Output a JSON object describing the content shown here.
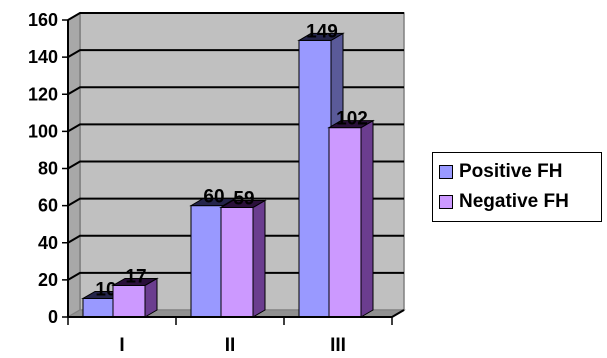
{
  "chart_data": {
    "type": "bar",
    "categories": [
      "I",
      "II",
      "III"
    ],
    "series": [
      {
        "name": "Positive FH",
        "values": [
          10,
          60,
          149
        ],
        "color": "#9999ff",
        "side_color": "#5a5a99",
        "top_color": "#24244a",
        "labels": [
          "10",
          "60",
          "149"
        ]
      },
      {
        "name": "Negative FH",
        "values": [
          17,
          59,
          102
        ],
        "color": "#cc99ff",
        "side_color": "#6b3d8f",
        "top_color": "#2a0f3a",
        "labels": [
          "17",
          "59",
          "102"
        ]
      }
    ],
    "yticks": [
      0,
      20,
      40,
      60,
      80,
      100,
      120,
      140,
      160
    ],
    "ylim": [
      0,
      160
    ],
    "grid": true,
    "legend_position": "right",
    "background": "#c0c0c0"
  },
  "legend": {
    "items": [
      {
        "label": "Positive FH",
        "color": "#9999ff"
      },
      {
        "label": "Negative FH",
        "color": "#cc99ff"
      }
    ]
  }
}
